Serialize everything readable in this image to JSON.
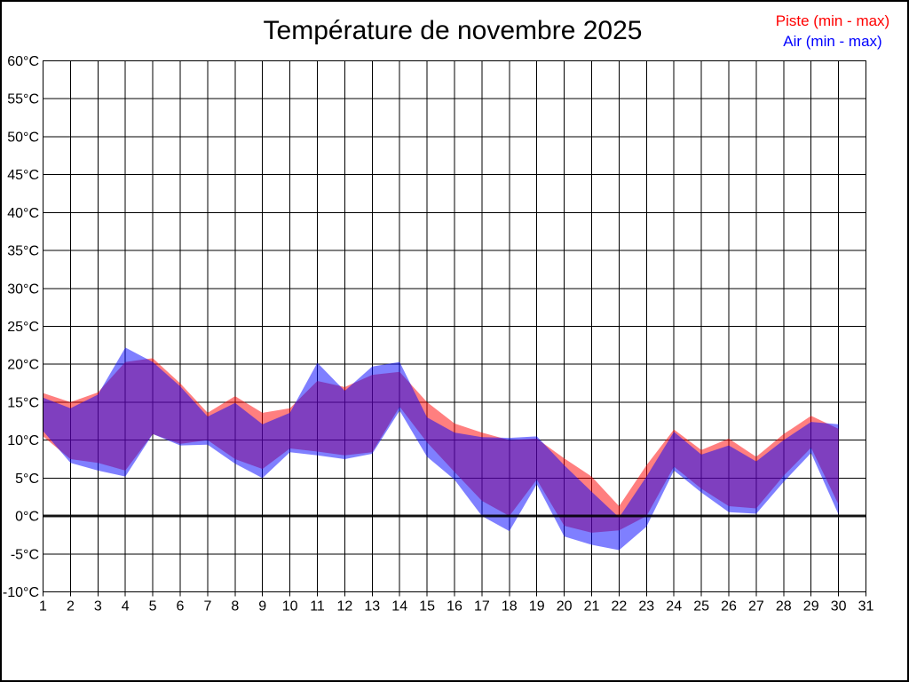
{
  "title": "Température de novembre 2025",
  "legend": {
    "piste_label": "Piste (min - max)",
    "air_label": "Air (min - max)",
    "piste_color": "#ff0000",
    "air_color": "#0000ff"
  },
  "colors": {
    "background": "#ffffff",
    "grid": "#000000",
    "piste_fill": "#ff0000",
    "air_fill": "#0000ff",
    "fill_opacity": 0.5
  },
  "chart_data": {
    "type": "area",
    "title": "Température de novembre 2025",
    "xlabel": "",
    "ylabel": "",
    "xlim": [
      1,
      31
    ],
    "ylim": [
      -10,
      60
    ],
    "grid": true,
    "zero_line_at": 0,
    "legend_position": "top-right",
    "x_tick_labels": [
      "1",
      "2",
      "3",
      "4",
      "5",
      "6",
      "7",
      "8",
      "9",
      "10",
      "11",
      "12",
      "13",
      "14",
      "15",
      "16",
      "17",
      "18",
      "19",
      "20",
      "21",
      "22",
      "23",
      "24",
      "25",
      "26",
      "27",
      "28",
      "29",
      "30",
      "31"
    ],
    "y_tick_labels": [
      "60°C",
      "55°C",
      "50°C",
      "45°C",
      "40°C",
      "35°C",
      "30°C",
      "25°C",
      "20°C",
      "15°C",
      "10°C",
      "5°C",
      "0°C",
      "-5°C",
      "-10°C"
    ],
    "y_tick_values": [
      60,
      55,
      50,
      45,
      40,
      35,
      30,
      25,
      20,
      15,
      10,
      5,
      0,
      -5,
      -10
    ],
    "x": [
      1,
      2,
      3,
      4,
      5,
      6,
      7,
      8,
      9,
      10,
      11,
      12,
      13,
      14,
      15,
      16,
      17,
      18,
      19,
      20,
      21,
      22,
      23,
      24,
      25,
      26,
      27,
      28,
      29,
      30
    ],
    "series": [
      {
        "name": "Piste (min - max)",
        "color": "#ff0000",
        "opacity": 0.5,
        "min": [
          10.5,
          7.5,
          7.0,
          6.0,
          10.8,
          9.5,
          10.0,
          7.5,
          6.2,
          8.9,
          8.5,
          8.0,
          8.4,
          14.4,
          9.7,
          5.8,
          2.0,
          0.0,
          4.8,
          -1.3,
          -2.2,
          -1.9,
          0.0,
          6.5,
          3.6,
          1.3,
          1.0,
          5.3,
          9.0,
          1.5
        ],
        "max": [
          16.2,
          15.0,
          16.3,
          20.3,
          20.8,
          17.5,
          13.6,
          15.8,
          13.6,
          14.2,
          17.8,
          17.0,
          18.6,
          19.0,
          15.0,
          12.2,
          11.0,
          10.0,
          10.2,
          7.6,
          5.2,
          1.3,
          6.7,
          11.4,
          8.7,
          10.2,
          7.8,
          10.8,
          13.2,
          11.5
        ]
      },
      {
        "name": "Air (min - max)",
        "color": "#0000ff",
        "opacity": 0.5,
        "min": [
          11.2,
          7.0,
          6.0,
          5.2,
          10.8,
          9.3,
          9.4,
          6.9,
          5.0,
          8.4,
          8.0,
          7.5,
          8.2,
          13.9,
          7.8,
          4.8,
          0.0,
          -2.0,
          4.2,
          -2.7,
          -3.8,
          -4.5,
          -1.4,
          6.0,
          3.1,
          0.5,
          0.3,
          4.5,
          8.3,
          0.2
        ],
        "max": [
          15.6,
          14.2,
          16.0,
          22.2,
          20.3,
          17.1,
          13.1,
          14.9,
          12.1,
          13.6,
          20.2,
          16.5,
          19.7,
          20.3,
          13.0,
          11.0,
          10.4,
          10.3,
          10.5,
          6.7,
          3.2,
          -0.2,
          5.2,
          11.1,
          8.1,
          9.3,
          7.2,
          10.0,
          12.4,
          12.1
        ]
      }
    ]
  }
}
